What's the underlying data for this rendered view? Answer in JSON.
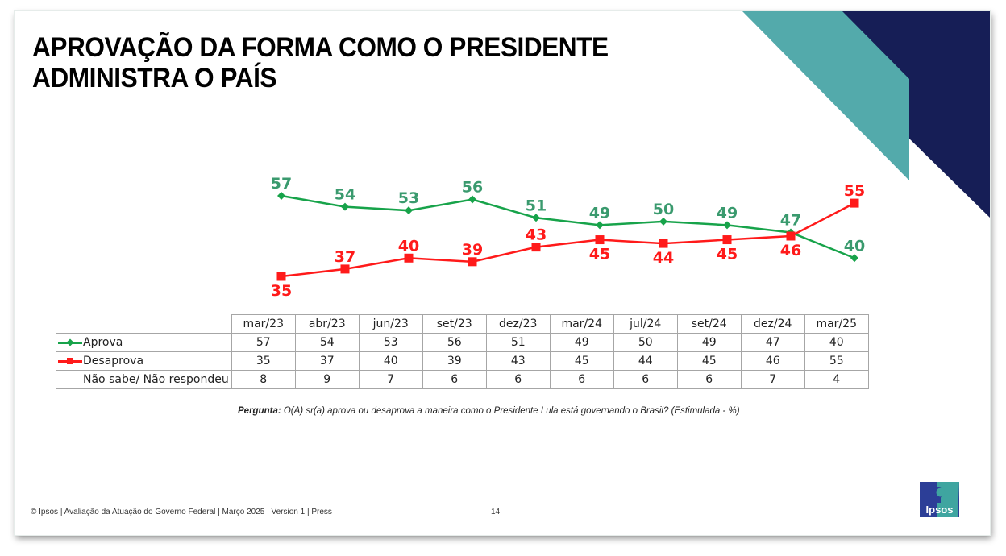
{
  "slide": {
    "title_lines": [
      "APROVAÇÃO DA FORMA COMO O PRESIDENTE",
      "ADMINISTRA O PAÍS"
    ],
    "colors": {
      "teal": "#53aaab",
      "navy": "#161e56",
      "approve": "#17a34a",
      "approve_label": "#3a9a6e",
      "disapprove": "#ff1a1a"
    },
    "question_label": "Pergunta:",
    "question_text": " O(A) sr(a) aprova ou desaprova a maneira como o Presidente Lula está governando o Brasil? (Estimulada - %)",
    "footer": "© Ipsos | Avaliação da Atuação do Governo Federal | Março 2025  | Version 1 | Press",
    "page_number": "14",
    "logo_text": "Ipsos",
    "logo_icon": "head-silhouette-icon"
  },
  "chart_data": {
    "type": "line",
    "title": "APROVAÇÃO DA FORMA COMO O PRESIDENTE ADMINISTRA O PAÍS",
    "xlabel": "",
    "ylabel": "%",
    "grid": false,
    "legend": "table-left",
    "categories": [
      "mar/23",
      "abr/23",
      "jun/23",
      "set/23",
      "dez/23",
      "mar/24",
      "jul/24",
      "set/24",
      "dez/24",
      "mar/25"
    ],
    "series": [
      {
        "name": "Aprova",
        "marker": "diamond",
        "color": "#17a34a",
        "values": [
          57,
          54,
          53,
          56,
          51,
          49,
          50,
          49,
          47,
          40
        ]
      },
      {
        "name": "Desaprova",
        "marker": "square",
        "color": "#ff1a1a",
        "values": [
          35,
          37,
          40,
          39,
          43,
          45,
          44,
          45,
          46,
          55
        ]
      },
      {
        "name": "Não sabe/ Não respondeu",
        "marker": "none",
        "table_only": true,
        "values": [
          8,
          9,
          7,
          6,
          6,
          6,
          6,
          6,
          7,
          4
        ]
      }
    ],
    "ylim": [
      30,
      60
    ]
  }
}
